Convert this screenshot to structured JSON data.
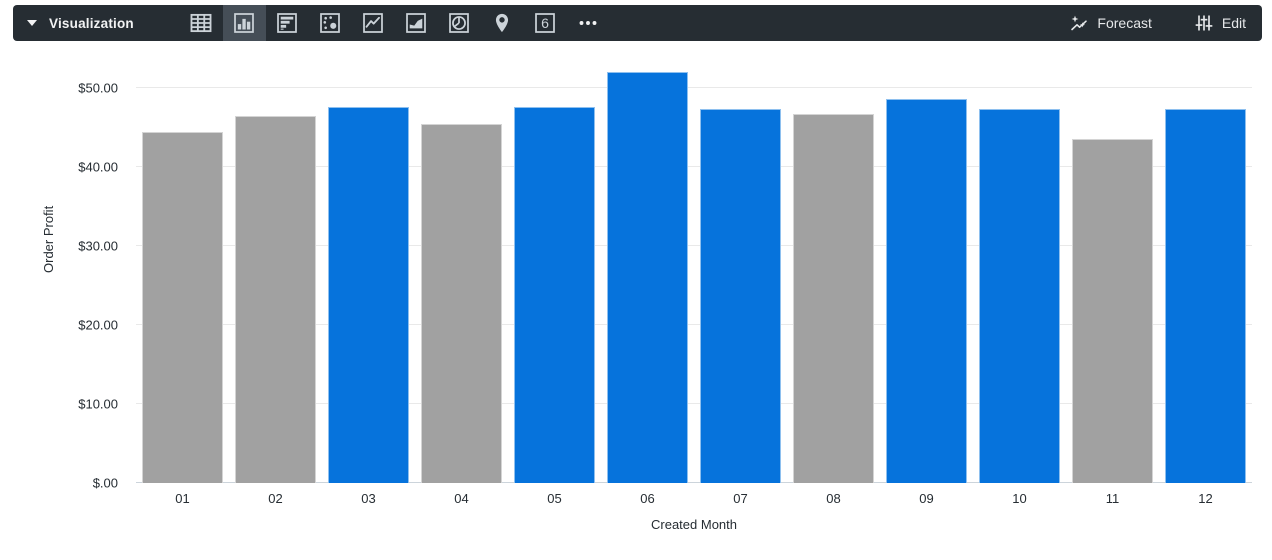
{
  "toolbar": {
    "title": "Visualization",
    "icons": [
      {
        "name": "table-chart-icon",
        "selected": false
      },
      {
        "name": "column-chart-icon",
        "selected": true
      },
      {
        "name": "bar-chart-icon",
        "selected": false
      },
      {
        "name": "scatter-chart-icon",
        "selected": false
      },
      {
        "name": "line-chart-icon",
        "selected": false
      },
      {
        "name": "area-chart-icon",
        "selected": false
      },
      {
        "name": "pie-chart-icon",
        "selected": false
      },
      {
        "name": "map-pin-icon",
        "selected": false
      },
      {
        "name": "single-value-icon",
        "selected": false
      },
      {
        "name": "more-options-icon",
        "selected": false
      }
    ],
    "forecast_label": "Forecast",
    "edit_label": "Edit"
  },
  "chart_data": {
    "type": "bar",
    "title": "",
    "xlabel": "Created Month",
    "ylabel": "Order Profit",
    "categories": [
      "01",
      "02",
      "03",
      "04",
      "05",
      "06",
      "07",
      "08",
      "09",
      "10",
      "11",
      "12"
    ],
    "values": [
      44.5,
      46.5,
      47.6,
      45.5,
      47.6,
      52.0,
      47.3,
      46.7,
      48.6,
      47.3,
      43.6,
      47.3
    ],
    "bar_colors": [
      "gray",
      "gray",
      "blue",
      "gray",
      "blue",
      "blue",
      "blue",
      "gray",
      "blue",
      "blue",
      "gray",
      "blue"
    ],
    "colors": {
      "blue": "#0673dc",
      "gray": "#a1a1a1"
    },
    "y_ticks": [
      "$.00",
      "$10.00",
      "$20.00",
      "$30.00",
      "$40.00",
      "$50.00"
    ],
    "y_tick_values": [
      0,
      10,
      20,
      30,
      40,
      50
    ],
    "ylim": [
      0,
      53.3
    ],
    "grid": true,
    "legend": "none"
  }
}
